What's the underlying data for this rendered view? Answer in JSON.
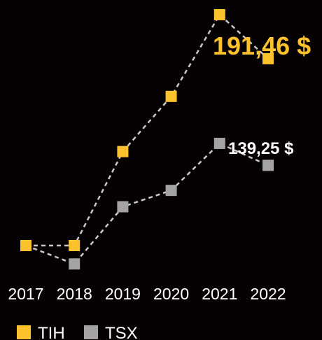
{
  "chart_data": {
    "type": "line",
    "categories": [
      "2017",
      "2018",
      "2019",
      "2020",
      "2021",
      "2022"
    ],
    "series": [
      {
        "name": "TIH",
        "color": "#fcc22d",
        "values": [
          100,
          100,
          146,
          173,
          213,
          191.46
        ],
        "end_label": "191,46 $"
      },
      {
        "name": "TSX",
        "color": "#a3a3a5",
        "values": [
          100,
          91,
          119,
          127,
          150,
          139.25
        ],
        "end_label": "139,25 $"
      }
    ],
    "title": "",
    "xlabel": "",
    "ylabel": "",
    "ylim": [
      80,
      220
    ],
    "grid": false,
    "legend": "bottom-left",
    "line_style": "dashed",
    "line_color": "#c9c9c9",
    "marker": "square"
  }
}
